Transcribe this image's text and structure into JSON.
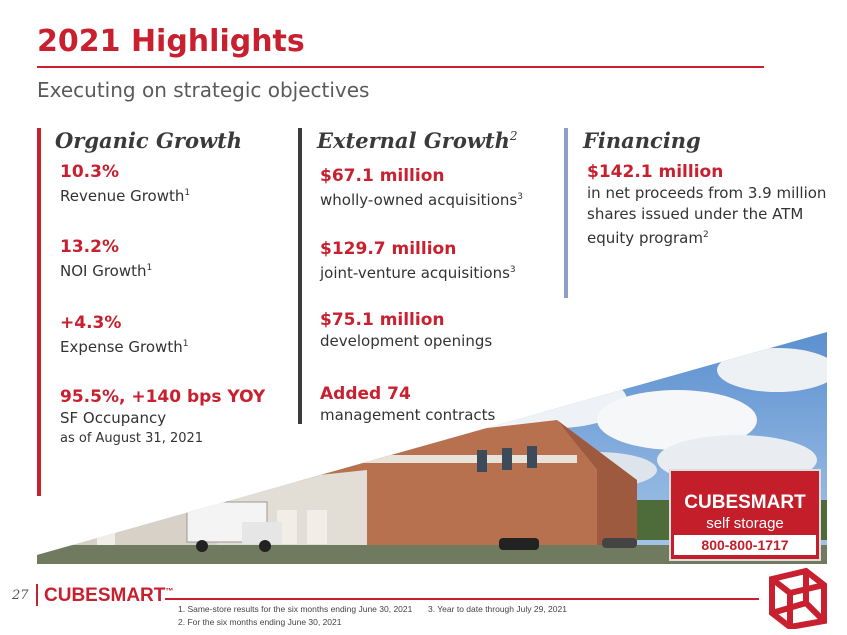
{
  "title": "2021 Highlights",
  "subtitle": "Executing on strategic objectives",
  "columns": [
    {
      "heading": "Organic Growth",
      "heading_sup": "",
      "bar_color": "#c8202f",
      "metrics": [
        {
          "value": "10.3%",
          "desc": "Revenue Growth",
          "sup": "1"
        },
        {
          "value": "13.2%",
          "desc": "NOI Growth",
          "sup": "1"
        },
        {
          "value": "+4.3%",
          "desc": "Expense Growth",
          "sup": "1"
        },
        {
          "value": "95.5%, +140 bps YOY",
          "desc": "SF Occupancy",
          "sup": "",
          "note": "as of August 31, 2021"
        }
      ]
    },
    {
      "heading": "External Growth",
      "heading_sup": "2",
      "bar_color": "#3a3a3a",
      "metrics": [
        {
          "value": "$67.1 million",
          "desc": "wholly-owned acquisitions",
          "sup": "3"
        },
        {
          "value": "$129.7 million",
          "desc": "joint-venture acquisitions",
          "sup": "3"
        },
        {
          "value": "$75.1 million",
          "desc": "development openings",
          "sup": ""
        },
        {
          "value": "Added 74",
          "desc": "management contracts",
          "sup": ""
        }
      ]
    },
    {
      "heading": "Financing",
      "heading_sup": "",
      "bar_color": "#8fa0c8",
      "metrics": [
        {
          "value": "$142.1 million",
          "desc_lines": [
            "in net proceeds from 3.9 million",
            "shares issued under the ATM",
            "equity program"
          ],
          "sup": "2"
        }
      ]
    }
  ],
  "photo": {
    "sign_brand": "CUBESMART",
    "sign_tagline": "self storage",
    "sign_phone": "800-800-1717"
  },
  "footer": {
    "page_number": "27",
    "logo": "CUBESMART",
    "logo_tm": "™",
    "footnotes": [
      "1.   Same-store results for the six months ending June 30, 2021",
      "2.   For the six months ending June 30, 2021",
      "3.   Year to date through July 29, 2021"
    ]
  },
  "colors": {
    "brand_red": "#c8202f",
    "dark_bar": "#3a3a3a",
    "blue_bar": "#8fa0c8"
  }
}
